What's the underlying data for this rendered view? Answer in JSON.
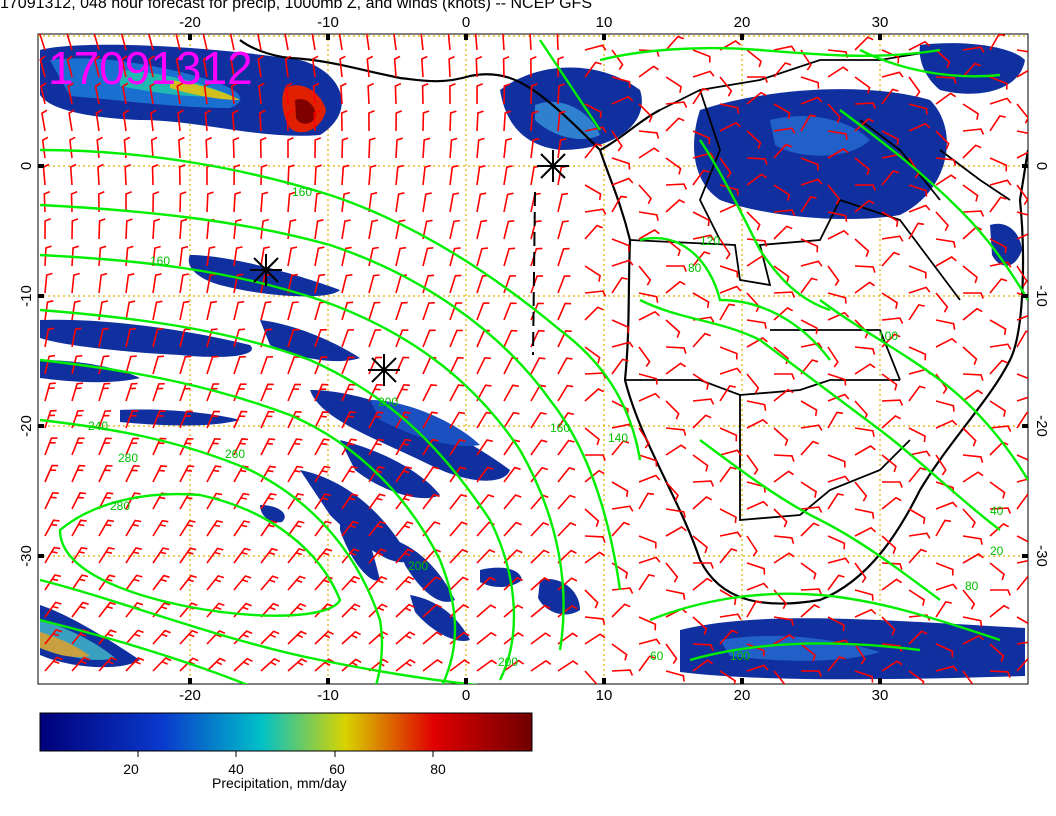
{
  "title": "17091312, 048 hour forecast for precip, 1000mb Z, and winds (knots) -- NCEP GFS",
  "stamp": "17091312",
  "stamp_color": "#ff00ff",
  "colors": {
    "contour": "#00ee00",
    "barb": "#ff0000",
    "coast": "#000000",
    "grid": "#e0b000",
    "precip_low": "#000080"
  },
  "axes": {
    "bottom_ticks": [
      "-20",
      "-10",
      "0",
      "10",
      "20",
      "30"
    ],
    "top_ticks": [
      "-20",
      "-10",
      "0",
      "10",
      "20",
      "30"
    ],
    "left_ticks": [
      "0",
      "-10",
      "-20",
      "-30"
    ],
    "right_ticks": [
      "0",
      "-10",
      "-20",
      "-30"
    ],
    "lon_range": [
      -30,
      40
    ],
    "lat_range": [
      -40,
      10
    ]
  },
  "contour_labels": [
    "160",
    "160",
    "200",
    "240",
    "280",
    "280",
    "160",
    "140",
    "120",
    "80",
    "40",
    "20",
    "100",
    "100",
    "80",
    "60",
    "200",
    "200",
    "260"
  ],
  "colorbar": {
    "ticks": [
      "20",
      "40",
      "60",
      "80"
    ],
    "label": "Precipitation, mm/day",
    "range": [
      0,
      100
    ]
  }
}
